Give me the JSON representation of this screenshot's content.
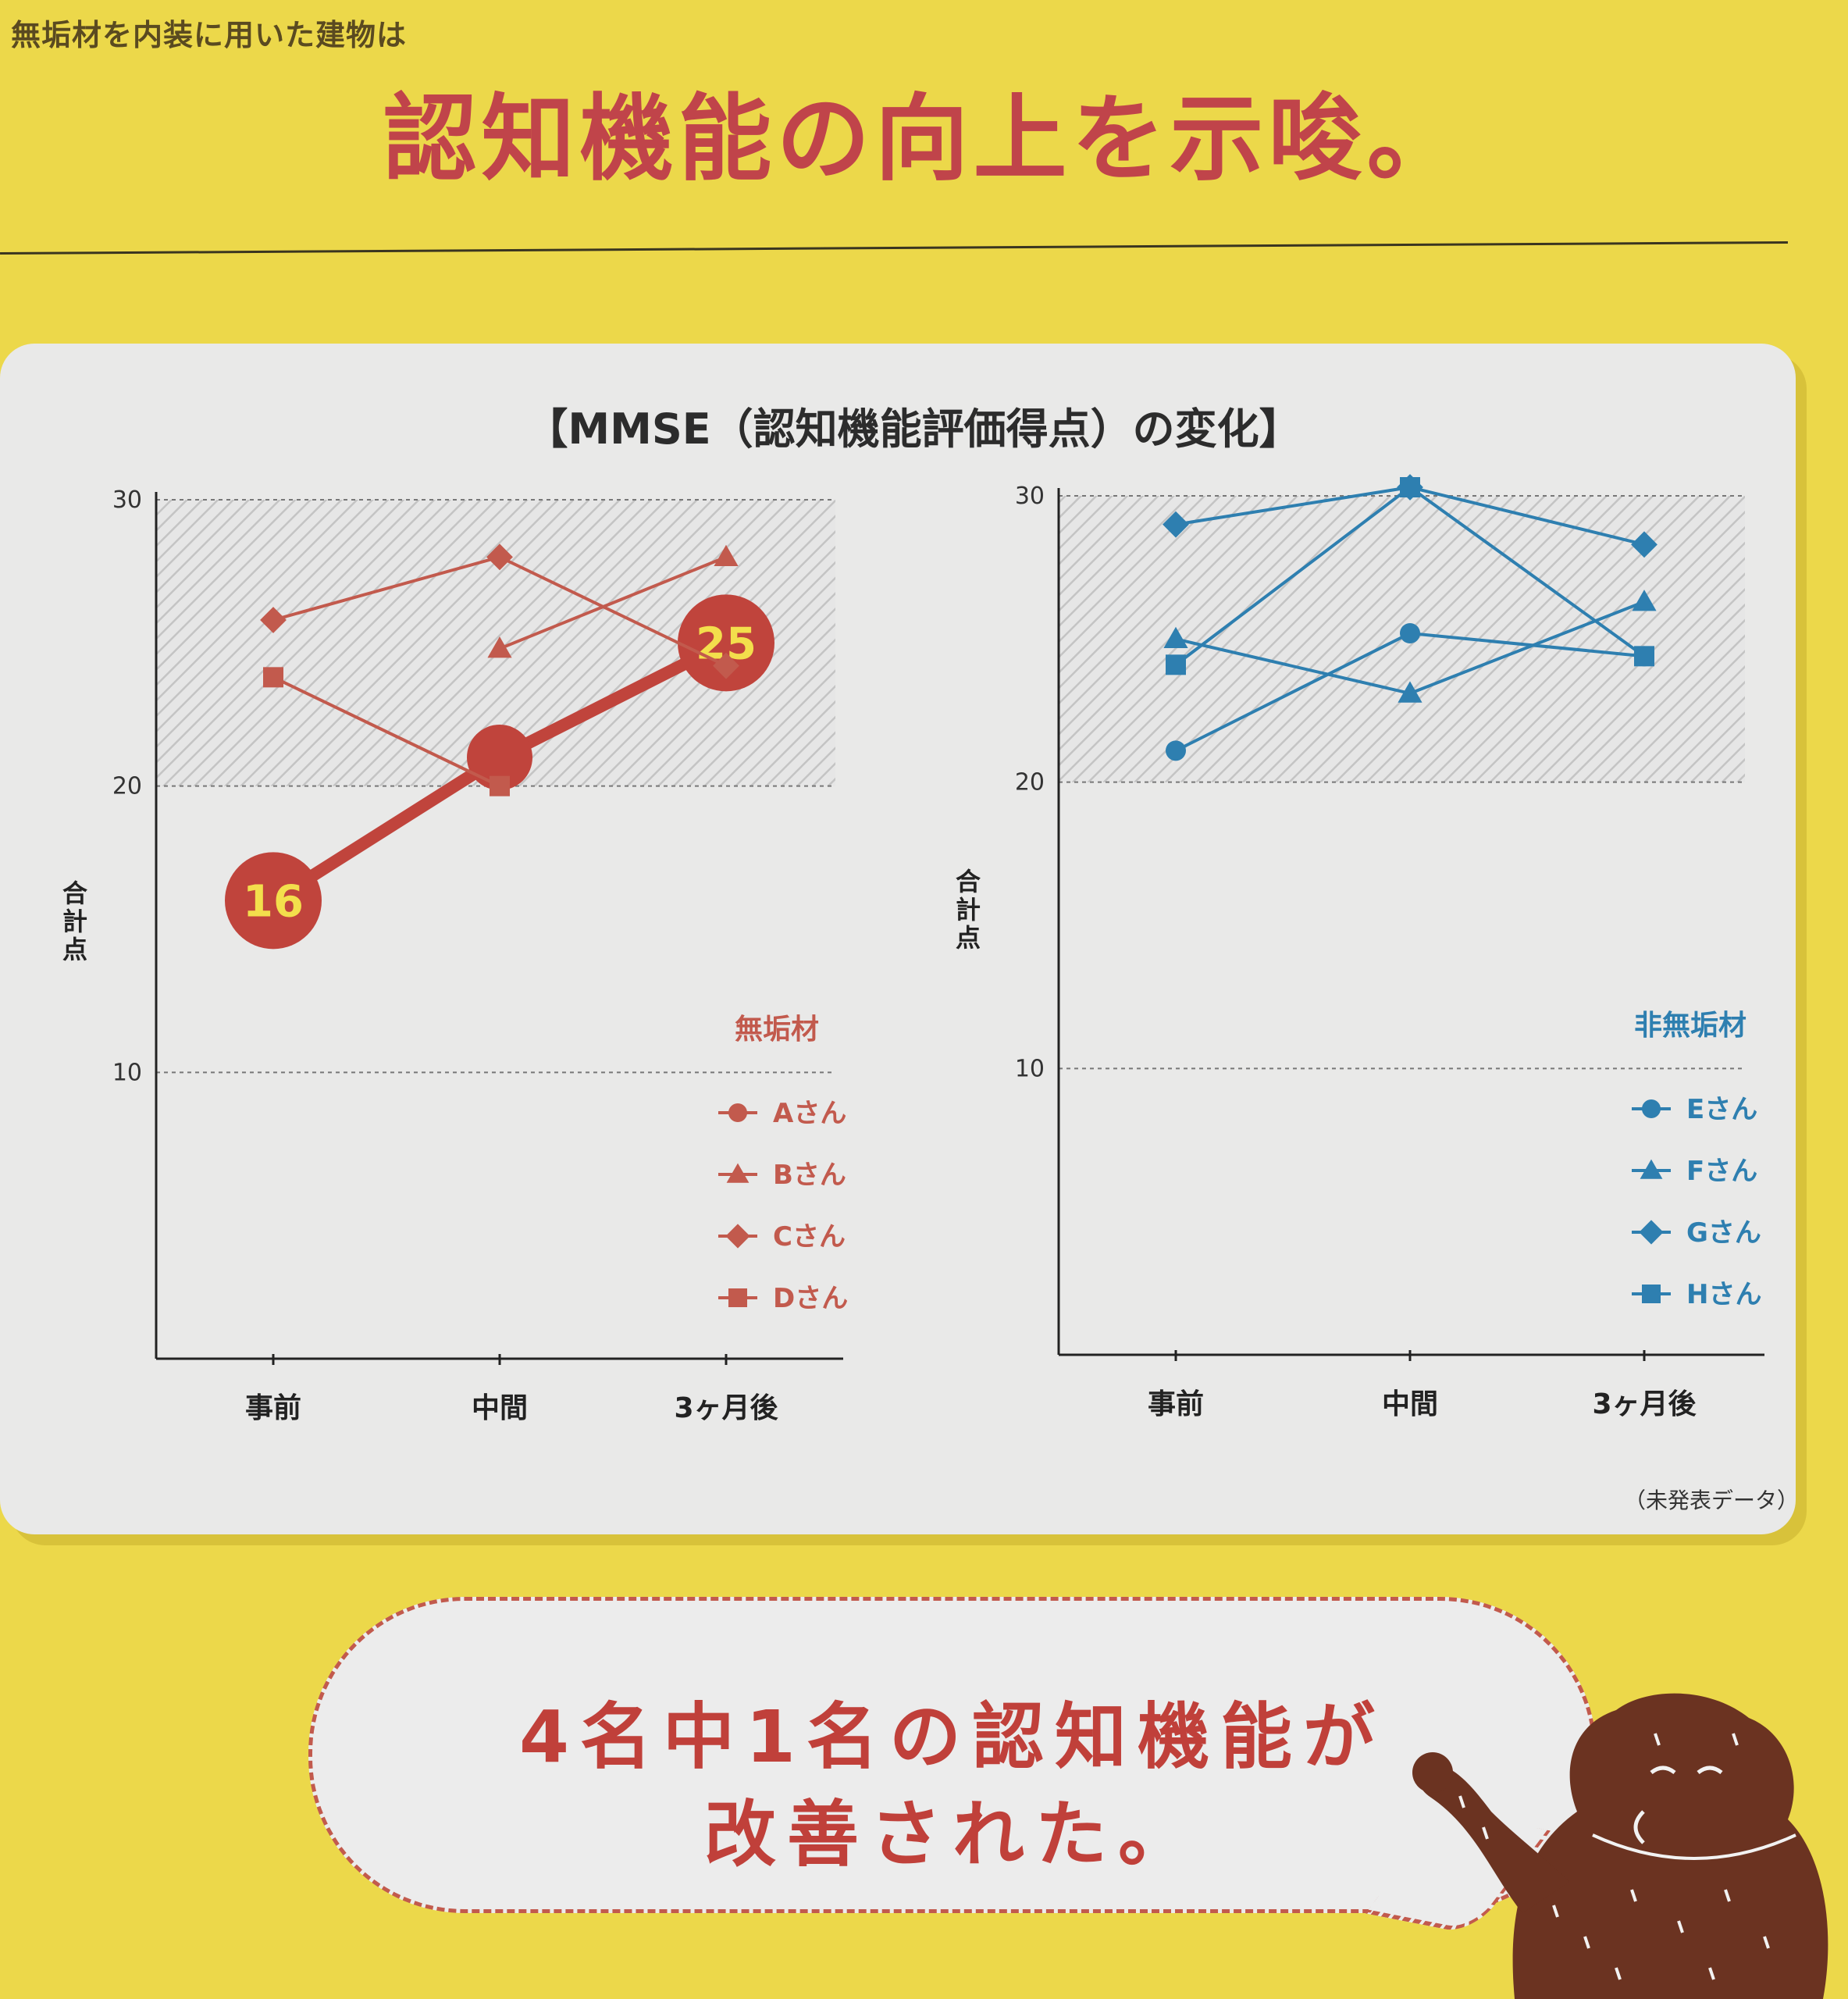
{
  "page": {
    "subheading": "無垢材を内装に用いた建物は",
    "headline": "認知機能の向上を示唆。",
    "panel_title": "【MMSE（認知機能評価得点）の変化】",
    "source_note": "（未発表データ）",
    "bubble_line1": "4名中1名の認知機能が",
    "bubble_line2": "改善された。"
  },
  "colors": {
    "muku": "#c25a4d",
    "muku_bold": "#c0443c",
    "non_muku": "#2e7fb0",
    "band": "#d4d4d4",
    "background": "#ecd84a"
  },
  "chart_data": [
    {
      "type": "line",
      "legend_title": "無垢材",
      "categories": [
        "事前",
        "中間",
        "3ヶ月後"
      ],
      "ylabel": "合計点",
      "yticks": [
        10,
        20,
        30
      ],
      "ylim": [
        0,
        30
      ],
      "shaded_band": [
        20,
        30
      ],
      "grid": "dashed at 10, 20, 30",
      "legend_position": "bottom-right",
      "series": [
        {
          "name": "Aさん",
          "marker": "circle",
          "values": [
            16,
            21,
            25
          ],
          "highlight": true,
          "point_labels": [
            "16",
            "",
            "25"
          ]
        },
        {
          "name": "Bさん",
          "marker": "triangle",
          "values": [
            null,
            24.8,
            28
          ]
        },
        {
          "name": "Cさん",
          "marker": "diamond",
          "values": [
            25.8,
            28,
            24.2
          ]
        },
        {
          "name": "Dさん",
          "marker": "square",
          "values": [
            23.8,
            20,
            null
          ]
        }
      ]
    },
    {
      "type": "line",
      "legend_title": "非無垢材",
      "categories": [
        "事前",
        "中間",
        "3ヶ月後"
      ],
      "ylabel": "合計点",
      "yticks": [
        10,
        20,
        30
      ],
      "ylim": [
        0,
        30
      ],
      "shaded_band": [
        20,
        30
      ],
      "grid": "dashed at 10, 20, 30",
      "legend_position": "bottom-right",
      "series": [
        {
          "name": "Eさん",
          "marker": "circle",
          "values": [
            21.1,
            25.2,
            24.4
          ]
        },
        {
          "name": "Fさん",
          "marker": "triangle",
          "values": [
            25,
            23.1,
            26.3
          ]
        },
        {
          "name": "Gさん",
          "marker": "diamond",
          "values": [
            29,
            30.3,
            28.3
          ]
        },
        {
          "name": "Hさん",
          "marker": "square",
          "values": [
            24.1,
            30.3,
            24.4
          ]
        }
      ]
    }
  ]
}
